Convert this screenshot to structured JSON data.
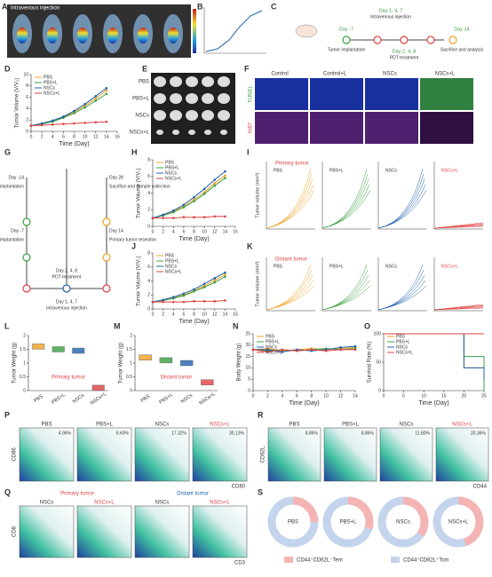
{
  "panels": {
    "A": {
      "letter": "A",
      "title": "Intravenous injection"
    },
    "B": {
      "letter": "B"
    },
    "C": {
      "letter": "C",
      "texts": [
        "Day 1, 4, 7",
        "Intravenous injection",
        "Day -7",
        "Tumor implantation",
        "Day 2, 4, 8",
        "PDT treatment",
        "Day 14",
        "Sacrifice and analysis"
      ]
    },
    "D": {
      "letter": "D",
      "type": "line",
      "xlabel": "Time (Day)",
      "ylabel": "Tumor Volume (V/V₀)",
      "x": [
        0,
        2,
        4,
        6,
        8,
        10,
        12,
        14
      ],
      "xlim": [
        0,
        16
      ],
      "xticks": [
        0,
        2,
        4,
        6,
        8,
        10,
        12,
        14,
        16
      ],
      "ylim": [
        0,
        10
      ],
      "yticks": [
        0,
        2,
        4,
        6,
        8,
        10
      ],
      "series": [
        {
          "name": "PBS",
          "color": "#f0a020",
          "values": [
            1,
            1.3,
            1.8,
            2.5,
            3.4,
            4.5,
            5.8,
            7.2
          ]
        },
        {
          "name": "PBS+L",
          "color": "#3aa040",
          "values": [
            1,
            1.3,
            1.7,
            2.4,
            3.2,
            4.2,
            5.4,
            6.6
          ]
        },
        {
          "name": "NSCs",
          "color": "#2060b0",
          "values": [
            1,
            1.4,
            1.9,
            2.6,
            3.6,
            4.8,
            6.2,
            7.6
          ]
        },
        {
          "name": "NSCs+L",
          "color": "#e04040",
          "values": [
            1,
            1.1,
            1.2,
            1.3,
            1.4,
            1.5,
            1.6,
            1.7
          ]
        }
      ]
    },
    "E": {
      "letter": "E",
      "rows": [
        "PBS",
        "PBS+L",
        "NSCs",
        "NSCs+L"
      ]
    },
    "F": {
      "letter": "F",
      "cols": [
        "Control",
        "Control+L",
        "NSCs",
        "NSCs+L"
      ],
      "rows": [
        "TUNEL",
        "Ki67"
      ]
    },
    "G": {
      "letter": "G",
      "texts": [
        "Day -14",
        "Primary tumor implantation",
        "Day -7",
        "Distant tumor implantation",
        "Day 28",
        "Sacrifice and sample collection",
        "Day 14",
        "Primary tumor resection",
        "Day 2, 4, 8",
        "PDT treatment",
        "Day 1, 4, 7",
        "Intravenous injection"
      ]
    },
    "H": {
      "letter": "H",
      "type": "line",
      "xlabel": "Time (Day)",
      "ylabel": "Tumor Volume (V/V₀)",
      "x": [
        0,
        2,
        4,
        6,
        8,
        10,
        12,
        14
      ],
      "xlim": [
        0,
        16
      ],
      "xticks": [
        0,
        2,
        4,
        6,
        8,
        10,
        12,
        14,
        16
      ],
      "ylim": [
        0,
        8
      ],
      "yticks": [
        0,
        2,
        4,
        6,
        8
      ],
      "series": [
        {
          "name": "PBS",
          "color": "#f0a020",
          "values": [
            1,
            1.3,
            1.8,
            2.4,
            3.2,
            4.1,
            5.2,
            6.1
          ]
        },
        {
          "name": "PBS+L",
          "color": "#3aa040",
          "values": [
            1,
            1.3,
            1.7,
            2.3,
            3,
            3.9,
            4.9,
            5.8
          ]
        },
        {
          "name": "NSCs",
          "color": "#2060b0",
          "values": [
            1,
            1.4,
            1.9,
            2.6,
            3.5,
            4.5,
            5.6,
            6.6
          ]
        },
        {
          "name": "NSCs+L",
          "color": "#e04040",
          "values": [
            1,
            1,
            1,
            1.1,
            1.1,
            1.1,
            1.2,
            1.2
          ]
        }
      ]
    },
    "I": {
      "letter": "I",
      "title": "Primary tumor",
      "ylabel": "Tumor volume (mm³)",
      "groups": [
        "PBS",
        "PBS+L",
        "NSCs",
        "NSCs+L"
      ]
    },
    "J": {
      "letter": "J",
      "type": "line",
      "xlabel": "Time (Day)",
      "ylabel": "Tumor Volume (V/V₀)",
      "x": [
        0,
        2,
        4,
        6,
        8,
        10,
        12,
        14
      ],
      "xlim": [
        0,
        16
      ],
      "xticks": [
        0,
        2,
        4,
        6,
        8,
        10,
        12,
        14,
        16
      ],
      "ylim": [
        0,
        8
      ],
      "yticks": [
        0,
        2,
        4,
        6,
        8
      ],
      "series": [
        {
          "name": "PBS",
          "color": "#f0a020",
          "values": [
            1,
            1.2,
            1.6,
            2,
            2.6,
            3.3,
            4.1,
            4.9
          ]
        },
        {
          "name": "PBS+L",
          "color": "#3aa040",
          "values": [
            1,
            1.2,
            1.5,
            1.9,
            2.5,
            3.1,
            3.8,
            4.6
          ]
        },
        {
          "name": "NSCs",
          "color": "#2060b0",
          "values": [
            1,
            1.3,
            1.7,
            2.2,
            2.8,
            3.6,
            4.4,
            5.2
          ]
        },
        {
          "name": "NSCs+L",
          "color": "#e04040",
          "values": [
            1,
            1,
            1,
            1,
            1.1,
            1.1,
            1.1,
            1.2
          ]
        }
      ]
    },
    "K": {
      "letter": "K",
      "title": "Distant tumor",
      "ylabel": "Tumor volume (mm³)",
      "groups": [
        "PBS",
        "PBS+L",
        "NSCs",
        "NSCs+L"
      ]
    },
    "L": {
      "letter": "L",
      "type": "bar",
      "title": "Primary tumor",
      "ylabel": "Tumor Weight (g)",
      "categories": [
        "PBS",
        "PBS+L",
        "NSCs",
        "NSCs+L"
      ],
      "colors": [
        "#f0a020",
        "#3aa040",
        "#2060b0",
        "#e04040"
      ],
      "values": [
        1.6,
        1.5,
        1.45,
        0.1
      ],
      "ylim": [
        0,
        2
      ],
      "yticks": [
        0,
        0.5,
        1,
        1.5,
        2
      ]
    },
    "M": {
      "letter": "M",
      "type": "bar",
      "title": "Distant tumor",
      "ylabel": "Tumor Weight (g)",
      "categories": [
        "PBS",
        "PBS+L",
        "NSCs",
        "NSCs+L"
      ],
      "colors": [
        "#f0a020",
        "#3aa040",
        "#2060b0",
        "#e04040"
      ],
      "values": [
        1.2,
        1.1,
        1.0,
        0.3
      ],
      "ylim": [
        0,
        2
      ],
      "yticks": [
        0,
        0.5,
        1,
        1.5,
        2
      ]
    },
    "N": {
      "letter": "N",
      "type": "line",
      "xlabel": "Time (Day)",
      "ylabel": "Body Weight (g)",
      "x": [
        0,
        2,
        4,
        6,
        8,
        10,
        12,
        14
      ],
      "xlim": [
        0,
        14
      ],
      "xticks": [
        0,
        2,
        4,
        6,
        8,
        10,
        12,
        14
      ],
      "ylim": [
        0,
        25
      ],
      "yticks": [
        0,
        5,
        10,
        15,
        20,
        25
      ],
      "series": [
        {
          "name": "PBS",
          "color": "#f0a020",
          "values": [
            18,
            18.5,
            17.5,
            18,
            18.5,
            18,
            18.5,
            19
          ]
        },
        {
          "name": "PBS+L",
          "color": "#3aa040",
          "values": [
            18,
            17.5,
            18,
            17.5,
            18,
            18.5,
            18,
            18.5
          ]
        },
        {
          "name": "NSCs",
          "color": "#2060b0",
          "values": [
            18,
            18,
            17,
            18,
            17.5,
            18,
            19,
            19.5
          ]
        },
        {
          "name": "NSCs+L",
          "color": "#e04040",
          "values": [
            18,
            17,
            18,
            17.5,
            18,
            17.5,
            18,
            18
          ]
        }
      ]
    },
    "O": {
      "letter": "O",
      "type": "step",
      "xlabel": "Time (Day)",
      "ylabel": "Survival Rate (%)",
      "x": [
        0,
        5,
        10,
        15,
        20,
        25
      ],
      "xlim": [
        0,
        25
      ],
      "xticks": [
        0,
        5,
        10,
        15,
        20,
        25
      ],
      "ylim": [
        0,
        100
      ],
      "yticks": [
        0,
        50,
        100
      ],
      "series": [
        {
          "name": "PBS",
          "color": "#f0a020",
          "values": [
            100,
            100,
            100,
            100,
            40,
            0
          ]
        },
        {
          "name": "PBS+L",
          "color": "#3aa040",
          "values": [
            100,
            100,
            100,
            100,
            60,
            0
          ]
        },
        {
          "name": "NSCs",
          "color": "#2060b0",
          "values": [
            100,
            100,
            100,
            100,
            40,
            20
          ]
        },
        {
          "name": "NSCs+L",
          "color": "#e04040",
          "values": [
            100,
            100,
            100,
            100,
            100,
            100
          ]
        }
      ]
    },
    "P": {
      "letter": "P",
      "ylabel": "CD86",
      "xlabel": "CD80",
      "tiles": [
        "PBS",
        "PBS+L",
        "NSCs",
        "NSCs+L"
      ],
      "percents": [
        "4.96%",
        "6.60%",
        "17.32%",
        "30.13%"
      ]
    },
    "R": {
      "letter": "R",
      "ylabel": "CD62L",
      "xlabel": "CD44",
      "tiles": [
        "PBS",
        "PBS+L",
        "NSCs",
        "NSCs+L"
      ],
      "percents": [
        "8.86%",
        "8.86%",
        "11.80%",
        "20.36%"
      ]
    },
    "Q": {
      "letter": "Q",
      "ylabel": "CD8",
      "xlabel": "CD3",
      "groups": [
        "Primary tumor",
        "Distant tumor"
      ],
      "tiles": [
        "NSCs",
        "NSCs+L",
        "NSCs",
        "NSCs+L"
      ]
    },
    "S": {
      "letter": "S",
      "type": "donut",
      "names": [
        "PBS",
        "PBS+L",
        "NSCs",
        "NSCs+L"
      ],
      "legend": [
        "CD44⁺CD62L⁻Tem",
        "CD44⁺CD62L⁺Tcm"
      ],
      "colors": [
        "#f4b4b4",
        "#c4d4ec"
      ],
      "values": [
        [
          25,
          75
        ],
        [
          30,
          70
        ],
        [
          35,
          65
        ],
        [
          45,
          55
        ]
      ]
    }
  }
}
